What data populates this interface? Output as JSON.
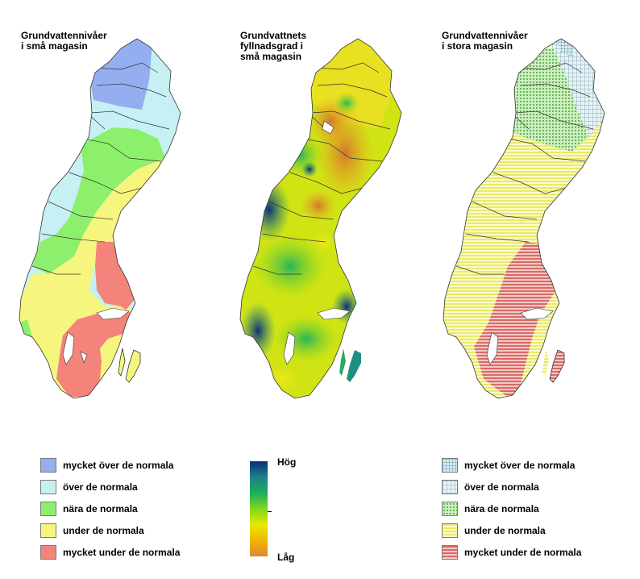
{
  "panels": {
    "small_levels": {
      "title_line1": "Grundvattennivåer",
      "title_line2": "i små magasin"
    },
    "fill_degree": {
      "title_line1": "Grundvattnets",
      "title_line2": "fyllnadsgrad i",
      "title_line3": "små magasin"
    },
    "large_levels": {
      "title_line1": "Grundvattennivåer",
      "title_line2": "i stora magasin"
    }
  },
  "legend_left": {
    "items": [
      {
        "label": "mycket över de normala",
        "color": "#94aef0"
      },
      {
        "label": "över de normala",
        "color": "#c6f0f4"
      },
      {
        "label": "nära de normala",
        "color": "#8cf06c"
      },
      {
        "label": "under de normala",
        "color": "#f6f67e"
      },
      {
        "label": "mycket under de normala",
        "color": "#f4837c"
      }
    ]
  },
  "legend_ramp": {
    "high_label": "Hög",
    "low_label": "Låg",
    "colors": [
      "#0b2f78",
      "#1e7f8a",
      "#19b05a",
      "#7fd81d",
      "#e8e800",
      "#f1b400",
      "#d98a38"
    ]
  },
  "legend_right": {
    "items": [
      {
        "label": "mycket över de normala",
        "pattern": "grid-dense",
        "color": "#9eb9c4"
      },
      {
        "label": "över de normala",
        "pattern": "grid",
        "color": "#d6eef5"
      },
      {
        "label": "nära de normala",
        "pattern": "dots",
        "color": "#a9e38c"
      },
      {
        "label": "under de normala",
        "pattern": "hlines",
        "color": "#f6f67e"
      },
      {
        "label": "mycket under de normala",
        "pattern": "hlines-red",
        "color": "#e88a86"
      }
    ]
  }
}
